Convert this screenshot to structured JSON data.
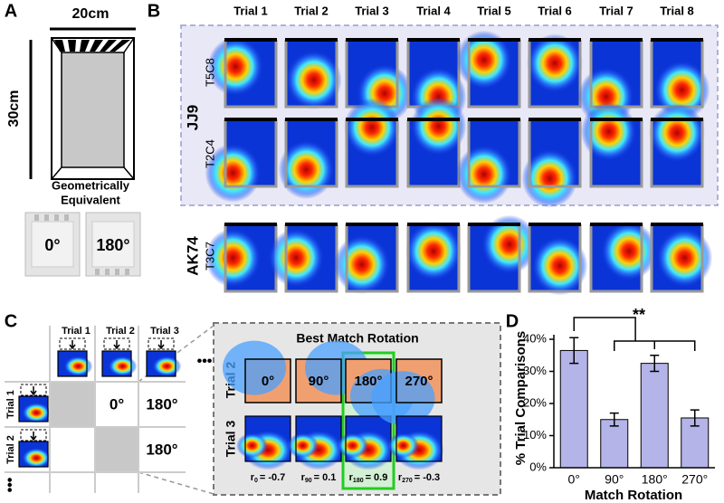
{
  "panel_labels": [
    "A",
    "B",
    "C",
    "D"
  ],
  "arena": {
    "width_label": "20cm",
    "height_label": "30cm",
    "caption": [
      "Geometrically",
      "Equivalent"
    ],
    "rotations": [
      "0°",
      "180°"
    ]
  },
  "rate_maps": {
    "trials": [
      "Trial 1",
      "Trial 2",
      "Trial 3",
      "Trial 4",
      "Trial 5",
      "Trial 6",
      "Trial 7",
      "Trial 8"
    ],
    "animals": [
      {
        "name": "JJ9",
        "cells": [
          "T5C8",
          "T2C4"
        ]
      },
      {
        "name": "AK74",
        "cells": [
          "T3C7"
        ]
      }
    ]
  },
  "comparison": {
    "columns": [
      "Trial 1",
      "Trial 2",
      "Trial 3"
    ],
    "rows": [
      "Trial 1",
      "Trial 2"
    ],
    "cells": [
      "0°",
      "180°",
      "180°"
    ],
    "ellipsis": "•••"
  },
  "best_match": {
    "title": "Best Match Rotation",
    "rows": [
      "Trial 2",
      "Trial 3"
    ],
    "rotations": [
      "0°",
      "90°",
      "180°",
      "270°"
    ],
    "symbol": "r",
    "relation": "=",
    "correlations": [
      {
        "subscript": "0",
        "value": -0.7
      },
      {
        "subscript": "90",
        "value": 0.1
      },
      {
        "subscript": "180",
        "value": 0.9
      },
      {
        "subscript": "270",
        "value": -0.3
      }
    ]
  },
  "chart_data": {
    "type": "bar",
    "y_label": "% Trial Comparisons",
    "x_label": "Match Rotation",
    "categories": [
      "0°",
      "90°",
      "180°",
      "270°"
    ],
    "values": [
      36.5,
      15,
      32.5,
      15.5
    ],
    "errors": [
      4,
      2,
      2.5,
      2.5
    ],
    "color": "#b4b4e8",
    "ylim": [
      0,
      40
    ],
    "yticks": [
      {
        "value": 0,
        "label": "0%"
      },
      {
        "value": 10,
        "label": "10%"
      },
      {
        "value": 20,
        "label": "20%"
      },
      {
        "value": 30,
        "label": "30%"
      },
      {
        "value": 40,
        "label": "40%"
      }
    ],
    "annotation": "**"
  }
}
